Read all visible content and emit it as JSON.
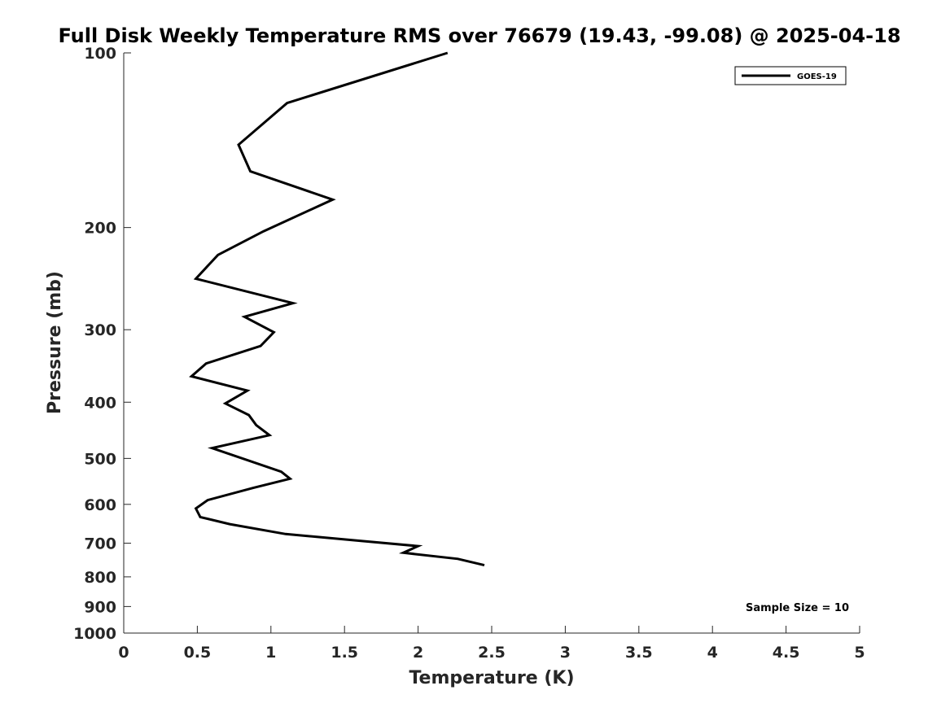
{
  "chart_data": {
    "type": "line",
    "title": "Full Disk Weekly Temperature RMS over 76679 (19.43, -99.08) @ 2025-04-18",
    "xlabel": "Temperature (K)",
    "ylabel": "Pressure (mb)",
    "xlim": [
      0,
      5
    ],
    "ylim": [
      100,
      1000
    ],
    "y_scale": "log",
    "y_direction": "reversed",
    "x_ticks": [
      "0",
      "0.5",
      "1",
      "1.5",
      "2",
      "2.5",
      "3",
      "3.5",
      "4",
      "4.5",
      "5"
    ],
    "y_ticks": [
      "100",
      "200",
      "300",
      "400",
      "500",
      "600",
      "700",
      "800",
      "900",
      "1000"
    ],
    "grid": false,
    "legend": {
      "placement": "top-right",
      "entries": [
        "GOES-19"
      ]
    },
    "annotation": "Sample Size = 10",
    "series": [
      {
        "name": "GOES-19",
        "color": "#000000",
        "points": [
          {
            "x": 2.2,
            "y": 100
          },
          {
            "x": 1.11,
            "y": 122
          },
          {
            "x": 0.78,
            "y": 144
          },
          {
            "x": 0.86,
            "y": 160
          },
          {
            "x": 1.42,
            "y": 179
          },
          {
            "x": 0.95,
            "y": 203
          },
          {
            "x": 0.64,
            "y": 223
          },
          {
            "x": 0.49,
            "y": 245
          },
          {
            "x": 1.15,
            "y": 270
          },
          {
            "x": 0.82,
            "y": 285
          },
          {
            "x": 1.02,
            "y": 303
          },
          {
            "x": 0.93,
            "y": 320
          },
          {
            "x": 0.56,
            "y": 343
          },
          {
            "x": 0.46,
            "y": 361
          },
          {
            "x": 0.84,
            "y": 382
          },
          {
            "x": 0.69,
            "y": 402
          },
          {
            "x": 0.85,
            "y": 421
          },
          {
            "x": 0.9,
            "y": 438
          },
          {
            "x": 0.99,
            "y": 456
          },
          {
            "x": 0.6,
            "y": 480
          },
          {
            "x": 1.07,
            "y": 527
          },
          {
            "x": 1.13,
            "y": 542
          },
          {
            "x": 0.88,
            "y": 562
          },
          {
            "x": 0.57,
            "y": 590
          },
          {
            "x": 0.49,
            "y": 610
          },
          {
            "x": 0.52,
            "y": 631
          },
          {
            "x": 0.72,
            "y": 649
          },
          {
            "x": 1.1,
            "y": 675
          },
          {
            "x": 1.62,
            "y": 694
          },
          {
            "x": 2.0,
            "y": 708
          },
          {
            "x": 1.9,
            "y": 727
          },
          {
            "x": 2.27,
            "y": 745
          },
          {
            "x": 2.45,
            "y": 764
          }
        ]
      }
    ]
  }
}
